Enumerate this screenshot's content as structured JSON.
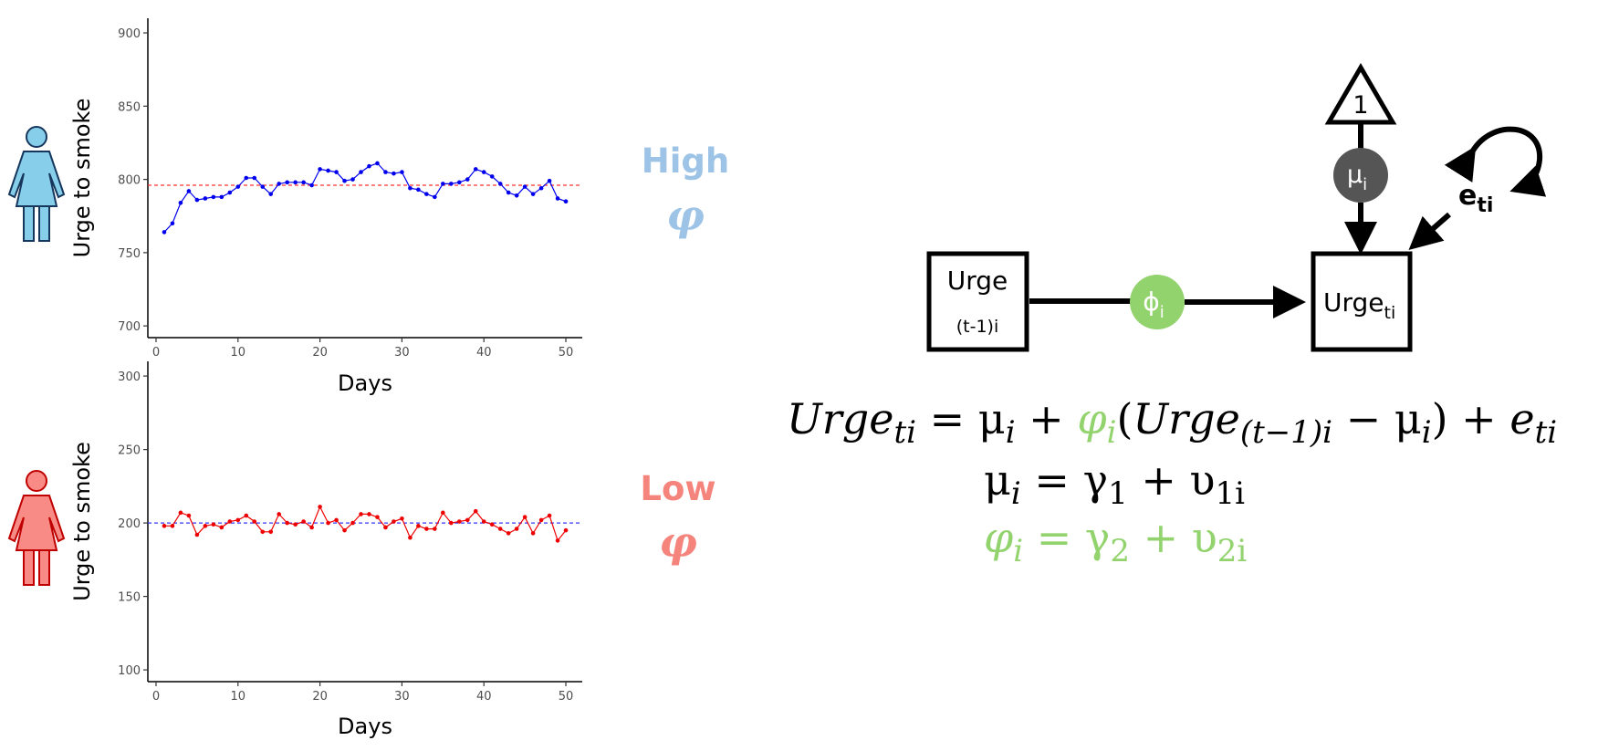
{
  "colors": {
    "high": "#9dc3e6",
    "low": "#f4847c",
    "series_high": "#0000ee",
    "series_low": "#ee0000",
    "mean_high_line": "#ff3333",
    "mean_low_line": "#3333ff",
    "phi_green": "#92d36e",
    "mu_node": "#555555",
    "person_high_fill": "#87ceeb",
    "person_low_fill": "#f88b85"
  },
  "icons": {
    "high": "woman-icon",
    "low": "woman-icon"
  },
  "labels": {
    "high_word": "High",
    "high_symbol": "φ",
    "low_word": "Low",
    "low_symbol": "φ"
  },
  "chart_data": [
    {
      "type": "line",
      "name": "high-phi-panel",
      "xlabel": "Days",
      "ylabel": "Urge to smoke",
      "xlim": [
        -1,
        52
      ],
      "ylim": [
        692,
        910
      ],
      "xticks": [
        0,
        10,
        20,
        30,
        40,
        50
      ],
      "yticks": [
        700,
        750,
        800,
        850,
        900
      ],
      "mean_line": 796,
      "series": [
        {
          "x": [
            1,
            2,
            3,
            4,
            5,
            6,
            7,
            8,
            9,
            10,
            11,
            12,
            13,
            14,
            15,
            16,
            17,
            18,
            19,
            20,
            21,
            22,
            23,
            24,
            25,
            26,
            27,
            28,
            29,
            30,
            31,
            32,
            33,
            34,
            35,
            36,
            37,
            38,
            39,
            40,
            41,
            42,
            43,
            44,
            45,
            46,
            47,
            48,
            49,
            50
          ],
          "values": [
            764,
            770,
            784,
            792,
            786,
            787,
            788,
            788,
            791,
            795,
            801,
            801,
            795,
            790,
            797,
            798,
            798,
            798,
            796,
            807,
            806,
            805,
            799,
            800,
            805,
            809,
            811,
            805,
            804,
            805,
            794,
            793,
            790,
            788,
            797,
            797,
            798,
            800,
            807,
            805,
            802,
            797,
            791,
            789,
            795,
            790,
            794,
            799,
            787,
            785
          ]
        }
      ],
      "grid": false
    },
    {
      "type": "line",
      "name": "low-phi-panel",
      "xlabel": "Days",
      "ylabel": "Urge to smoke",
      "xlim": [
        -1,
        52
      ],
      "ylim": [
        92,
        310
      ],
      "xticks": [
        0,
        10,
        20,
        30,
        40,
        50
      ],
      "yticks": [
        100,
        150,
        200,
        250,
        300
      ],
      "mean_line": 200,
      "series": [
        {
          "x": [
            1,
            2,
            3,
            4,
            5,
            6,
            7,
            8,
            9,
            10,
            11,
            12,
            13,
            14,
            15,
            16,
            17,
            18,
            19,
            20,
            21,
            22,
            23,
            24,
            25,
            26,
            27,
            28,
            29,
            30,
            31,
            32,
            33,
            34,
            35,
            36,
            37,
            38,
            39,
            40,
            41,
            42,
            43,
            44,
            45,
            46,
            47,
            48,
            49,
            50
          ],
          "values": [
            198,
            198,
            207,
            205,
            192,
            198,
            199,
            197,
            201,
            202,
            205,
            201,
            194,
            194,
            206,
            200,
            199,
            201,
            197,
            211,
            200,
            202,
            195,
            200,
            206,
            206,
            204,
            197,
            201,
            203,
            190,
            198,
            196,
            196,
            207,
            200,
            201,
            202,
            208,
            201,
            199,
            196,
            193,
            196,
            204,
            193,
            202,
            205,
            188,
            195
          ]
        }
      ],
      "grid": false
    }
  ],
  "diagram": {
    "triangle_label": "1",
    "mu_label": "μ",
    "mu_sub": "i",
    "error_label": "e",
    "error_sub": "ti",
    "urge_prev_label": "Urge",
    "urge_prev_sub": "(t-1)i",
    "phi_label": "ϕ",
    "phi_sub": "i",
    "urge_label": "Urge",
    "urge_sub": "ti"
  },
  "equations": {
    "eq1": {
      "lhs": "Urge",
      "lhs_sub": "ti",
      "eq": " = ",
      "mu": "μ",
      "mu_sub": "i",
      "plus": " + ",
      "phi": "φ",
      "phi_sub": "i",
      "open": "(",
      "urge": "Urge",
      "urge_sub": "(t−1)i",
      "minus": "  − ",
      "mu2": "μ",
      "mu2_sub": "i",
      "close": ")",
      "plus2": " + ",
      "e": "e",
      "e_sub": "ti"
    },
    "eq2": {
      "mu": "μ",
      "mu_sub": "i",
      "eq": " =  ",
      "gamma": "γ",
      "gamma_sub": "1",
      "plus": " + ",
      "ups": "υ",
      "ups_sub": "1i"
    },
    "eq3": {
      "phi": "φ",
      "phi_sub": "i",
      "eq": " =  ",
      "gamma": "γ",
      "gamma_sub": "2",
      "plus": " + ",
      "ups": "υ",
      "ups_sub": "2i"
    }
  }
}
